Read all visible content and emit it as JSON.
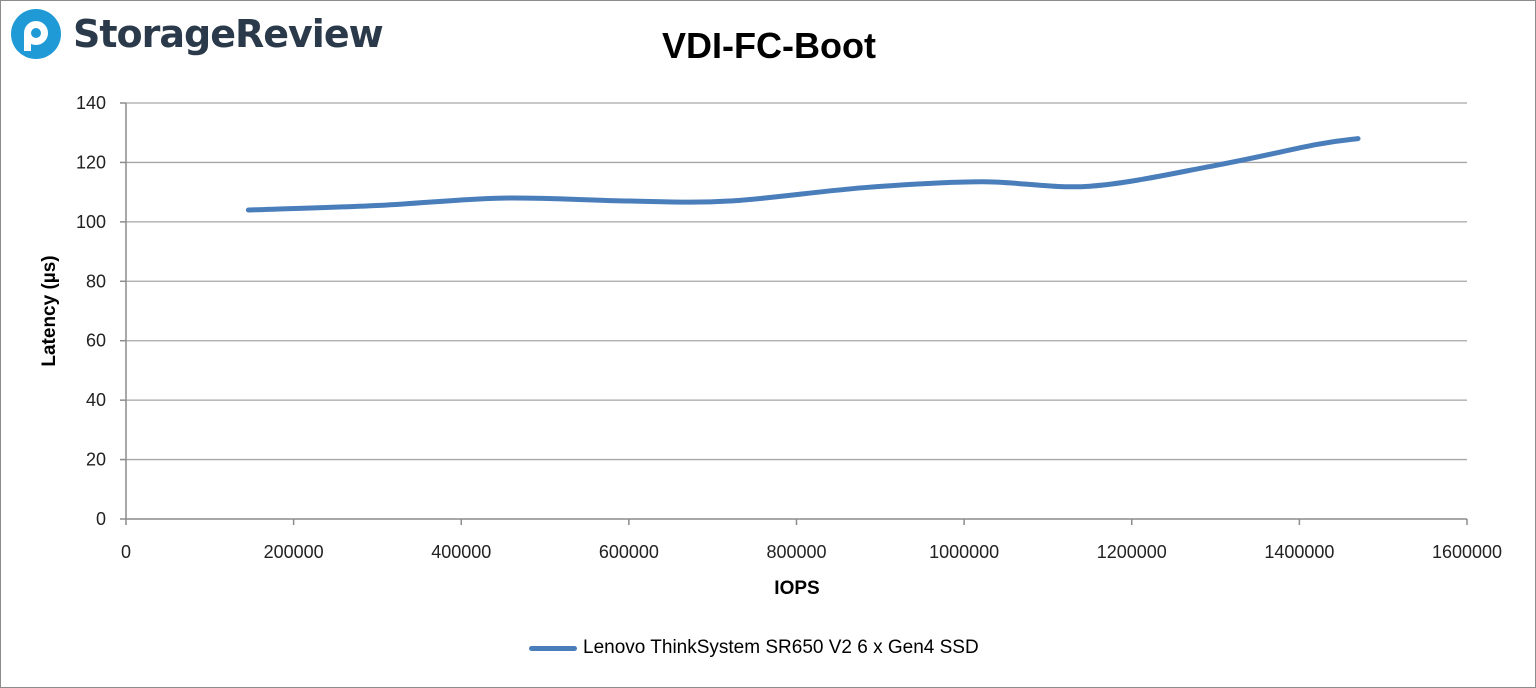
{
  "brand": {
    "name": "StorageReview",
    "icon": "storagereview-logo-icon",
    "accent": "#1f9ad6"
  },
  "chart_data": {
    "type": "line",
    "title": "VDI-FC-Boot",
    "xlabel": "IOPS",
    "ylabel": "Latency (µs)",
    "xlim": [
      0,
      1600000
    ],
    "ylim": [
      0,
      140
    ],
    "xticks": [
      "0",
      "200000",
      "400000",
      "600000",
      "800000",
      "1000000",
      "1200000",
      "1400000",
      "1600000"
    ],
    "yticks": [
      "0",
      "20",
      "40",
      "60",
      "80",
      "100",
      "120",
      "140"
    ],
    "grid": "horizontal",
    "legend_position": "bottom",
    "series": [
      {
        "name": "Lenovo ThinkSystem SR650 V2 6 x Gen4 SSD",
        "color": "#4a7ebb",
        "points": [
          [
            146000,
            104
          ],
          [
            300000,
            105.5
          ],
          [
            450000,
            108
          ],
          [
            600000,
            107
          ],
          [
            720000,
            107
          ],
          [
            880000,
            111.5
          ],
          [
            1020000,
            113.5
          ],
          [
            1150000,
            112
          ],
          [
            1300000,
            119
          ],
          [
            1420000,
            126
          ],
          [
            1470000,
            128
          ]
        ]
      }
    ]
  }
}
